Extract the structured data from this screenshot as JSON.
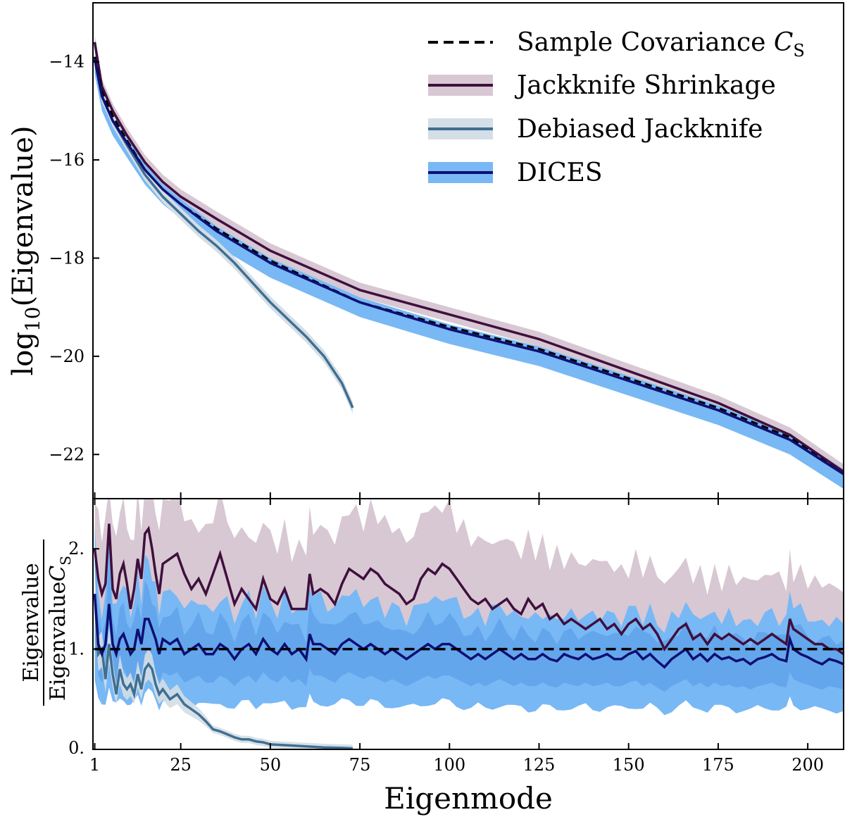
{
  "chart_data": [
    {
      "panel": "top",
      "type": "line",
      "ylabel": "log10(Eigenvalue)",
      "ylabel_main": "log",
      "ylabel_sub": "10",
      "ylabel_rest": "(Eigenvalue)",
      "xlim": [
        0.5,
        210
      ],
      "ylim": [
        -22.9,
        -12.8
      ],
      "yticks": [
        -14,
        -16,
        -18,
        -20,
        -22
      ],
      "ytick_labels": [
        "−14",
        "−16",
        "−18",
        "−20",
        "−22"
      ],
      "legend": {
        "placement": "top-right",
        "entries": [
          {
            "key": "sample",
            "label": "Sample Covariance ",
            "math": "C",
            "math_sub": "S"
          },
          {
            "key": "jk",
            "label": "Jackknife Shrinkage"
          },
          {
            "key": "djk",
            "label": "Debiased Jackknife"
          },
          {
            "key": "dices",
            "label": "DICES"
          }
        ]
      },
      "series": [
        {
          "name": "Sample Covariance C_S",
          "key": "sample",
          "x": [
            1,
            3,
            6,
            10,
            15,
            20,
            25,
            35,
            50,
            75,
            100,
            125,
            150,
            175,
            195,
            210
          ],
          "y": [
            -13.9,
            -14.6,
            -15.1,
            -15.6,
            -16.2,
            -16.6,
            -16.9,
            -17.4,
            -18.05,
            -18.9,
            -19.4,
            -19.85,
            -20.45,
            -21.05,
            -21.65,
            -22.4
          ]
        },
        {
          "name": "Jackknife Shrinkage",
          "key": "jk",
          "x": [
            1,
            3,
            6,
            10,
            15,
            20,
            25,
            35,
            50,
            75,
            100,
            125,
            150,
            175,
            195,
            210
          ],
          "y": [
            -13.6,
            -14.5,
            -15.0,
            -15.5,
            -16.05,
            -16.45,
            -16.75,
            -17.2,
            -17.85,
            -18.65,
            -19.15,
            -19.65,
            -20.3,
            -20.95,
            -21.6,
            -22.35
          ],
          "band": 0.15
        },
        {
          "name": "Debiased Jackknife",
          "key": "djk",
          "x": [
            1,
            3,
            6,
            10,
            15,
            20,
            25,
            30,
            35,
            40,
            45,
            50,
            55,
            60,
            65,
            70,
            73
          ],
          "y": [
            -13.9,
            -14.7,
            -15.2,
            -15.7,
            -16.3,
            -16.75,
            -17.1,
            -17.45,
            -17.75,
            -18.1,
            -18.5,
            -18.9,
            -19.25,
            -19.6,
            -20.0,
            -20.55,
            -21.05
          ],
          "band": 0.12
        },
        {
          "name": "DICES",
          "key": "dices",
          "x": [
            1,
            3,
            6,
            10,
            15,
            20,
            25,
            35,
            50,
            75,
            100,
            125,
            150,
            175,
            195,
            210
          ],
          "y": [
            -13.95,
            -14.7,
            -15.2,
            -15.65,
            -16.2,
            -16.6,
            -16.9,
            -17.45,
            -18.1,
            -18.9,
            -19.45,
            -19.9,
            -20.5,
            -21.1,
            -21.7,
            -22.4
          ],
          "band_upper": 0.1,
          "band_lower": 0.3
        }
      ]
    },
    {
      "panel": "bottom",
      "type": "line",
      "xlabel": "Eigenmode",
      "ylabel_num": "Eigenvalue",
      "ylabel_den": "Eigenvalue",
      "ylabel_den_math": "C",
      "ylabel_den_sub": "S",
      "xlim": [
        0.5,
        210
      ],
      "ylim": [
        0.0,
        2.5
      ],
      "xticks": [
        1,
        25,
        50,
        75,
        100,
        125,
        150,
        175,
        200
      ],
      "xtick_labels": [
        "1",
        "25",
        "50",
        "75",
        "100",
        "125",
        "150",
        "175",
        "200"
      ],
      "yticks": [
        0.0,
        1.0,
        2.0
      ],
      "ytick_labels": [
        "0.",
        "1.",
        "2."
      ],
      "series": [
        {
          "name": "Sample Covariance C_S",
          "key": "sample",
          "x": [
            1,
            210
          ],
          "y": [
            1.0,
            1.0
          ]
        },
        {
          "name": "Jackknife Shrinkage",
          "key": "jk",
          "x": [
            1,
            2,
            3,
            4,
            5,
            6,
            7,
            8,
            9,
            10,
            11,
            12,
            13,
            14,
            15,
            16,
            17,
            18,
            19,
            20,
            22,
            24,
            26,
            28,
            30,
            32,
            34,
            36,
            38,
            40,
            42,
            44,
            46,
            48,
            50,
            52,
            54,
            56,
            58,
            60,
            61,
            62,
            64,
            66,
            68,
            70,
            72,
            74,
            76,
            78,
            80,
            82,
            84,
            86,
            88,
            90,
            92,
            94,
            96,
            98,
            100,
            102,
            104,
            106,
            108,
            110,
            112,
            114,
            116,
            118,
            120,
            122,
            124,
            126,
            128,
            130,
            132,
            134,
            136,
            138,
            140,
            142,
            144,
            146,
            148,
            150,
            152,
            154,
            156,
            158,
            160,
            162,
            164,
            166,
            168,
            170,
            172,
            174,
            176,
            178,
            180,
            182,
            184,
            186,
            188,
            190,
            192,
            194,
            195,
            196,
            198,
            200,
            202,
            204,
            206,
            208,
            210
          ],
          "y": [
            2.0,
            1.7,
            1.55,
            1.65,
            2.25,
            1.6,
            1.5,
            1.75,
            1.85,
            1.65,
            1.4,
            1.6,
            1.9,
            1.7,
            2.15,
            2.2,
            2.0,
            1.75,
            1.55,
            1.85,
            1.9,
            1.95,
            1.75,
            1.6,
            1.7,
            1.55,
            1.75,
            1.95,
            1.7,
            1.45,
            1.6,
            1.5,
            1.4,
            1.7,
            1.5,
            1.45,
            1.6,
            1.4,
            1.4,
            1.4,
            1.75,
            1.55,
            1.6,
            1.55,
            1.45,
            1.65,
            1.8,
            1.75,
            1.7,
            1.8,
            1.75,
            1.65,
            1.6,
            1.55,
            1.45,
            1.5,
            1.7,
            1.8,
            1.75,
            1.85,
            1.8,
            1.7,
            1.6,
            1.5,
            1.45,
            1.5,
            1.4,
            1.45,
            1.5,
            1.4,
            1.35,
            1.5,
            1.4,
            1.45,
            1.3,
            1.35,
            1.25,
            1.3,
            1.25,
            1.2,
            1.25,
            1.3,
            1.2,
            1.25,
            1.15,
            1.25,
            1.3,
            1.2,
            1.25,
            1.15,
            1.0,
            1.1,
            1.2,
            1.25,
            1.1,
            1.15,
            1.05,
            1.15,
            1.1,
            1.15,
            1.1,
            1.05,
            1.1,
            1.05,
            1.1,
            1.15,
            1.1,
            1.05,
            1.3,
            1.2,
            1.15,
            1.1,
            1.05,
            1.05,
            1.0,
            1.0,
            0.95
          ]
        },
        {
          "name": "Debiased Jackknife",
          "key": "djk",
          "x": [
            1,
            2,
            3,
            4,
            5,
            6,
            7,
            8,
            9,
            10,
            11,
            12,
            13,
            14,
            15,
            16,
            17,
            18,
            19,
            20,
            22,
            24,
            26,
            28,
            30,
            32,
            34,
            36,
            38,
            40,
            42,
            44,
            46,
            48,
            50,
            55,
            60,
            65,
            70,
            73
          ],
          "y": [
            1.55,
            0.95,
            1.0,
            0.7,
            1.05,
            0.75,
            0.55,
            0.8,
            0.65,
            0.6,
            0.65,
            0.55,
            0.75,
            0.6,
            0.8,
            0.85,
            0.8,
            0.65,
            0.55,
            0.6,
            0.5,
            0.55,
            0.45,
            0.4,
            0.35,
            0.28,
            0.2,
            0.18,
            0.15,
            0.12,
            0.1,
            0.1,
            0.08,
            0.07,
            0.05,
            0.04,
            0.03,
            0.02,
            0.015,
            0.01
          ]
        },
        {
          "name": "DICES",
          "key": "dices",
          "x": [
            1,
            2,
            3,
            4,
            5,
            6,
            7,
            8,
            9,
            10,
            11,
            12,
            13,
            14,
            15,
            16,
            17,
            18,
            19,
            20,
            22,
            24,
            26,
            28,
            30,
            32,
            34,
            36,
            38,
            40,
            42,
            44,
            46,
            48,
            50,
            52,
            54,
            56,
            58,
            60,
            61,
            62,
            64,
            66,
            68,
            70,
            72,
            74,
            76,
            78,
            80,
            82,
            84,
            86,
            88,
            90,
            92,
            94,
            96,
            98,
            100,
            102,
            104,
            106,
            108,
            110,
            112,
            114,
            116,
            118,
            120,
            122,
            124,
            126,
            128,
            130,
            132,
            134,
            136,
            138,
            140,
            142,
            144,
            146,
            148,
            150,
            152,
            154,
            156,
            158,
            160,
            162,
            164,
            166,
            168,
            170,
            172,
            174,
            176,
            178,
            180,
            182,
            184,
            186,
            188,
            190,
            192,
            194,
            195,
            196,
            198,
            200,
            202,
            204,
            206,
            208,
            210
          ],
          "y": [
            1.55,
            1.05,
            0.95,
            1.05,
            1.45,
            1.05,
            0.95,
            1.1,
            1.15,
            1.05,
            0.95,
            1.0,
            1.2,
            1.05,
            1.3,
            1.3,
            1.2,
            1.1,
            0.95,
            1.1,
            1.05,
            1.1,
            0.95,
            1.0,
            1.05,
            0.95,
            0.95,
            1.05,
            1.0,
            0.9,
            1.0,
            1.05,
            0.95,
            1.1,
            1.0,
            0.95,
            1.05,
            0.95,
            1.0,
            0.9,
            1.15,
            1.05,
            1.05,
            1.0,
            0.95,
            1.05,
            1.1,
            1.05,
            1.0,
            1.05,
            1.0,
            0.95,
            1.0,
            0.95,
            0.9,
            0.95,
            1.0,
            1.05,
            1.0,
            1.05,
            1.05,
            1.0,
            0.95,
            0.9,
            0.95,
            0.9,
            0.95,
            1.0,
            0.95,
            0.9,
            0.95,
            0.9,
            0.9,
            0.95,
            0.9,
            0.88,
            0.95,
            0.92,
            0.9,
            0.95,
            0.9,
            0.92,
            0.95,
            0.9,
            0.9,
            0.95,
            0.98,
            0.9,
            0.95,
            0.88,
            0.82,
            0.9,
            0.95,
            1.0,
            0.9,
            0.95,
            0.88,
            0.95,
            0.9,
            0.92,
            0.88,
            0.9,
            0.85,
            0.9,
            0.92,
            0.95,
            0.9,
            0.88,
            1.1,
            1.0,
            0.95,
            0.92,
            0.88,
            0.85,
            0.9,
            0.88,
            0.85
          ]
        }
      ],
      "bands": {
        "jk": {
          "upper_base": 2.1,
          "lower_ratio": 0.6
        },
        "dices_outer": {
          "upper_scale": 1.45,
          "lower_scale": 0.45
        },
        "dices_inner": {
          "upper_scale": 1.25,
          "lower_scale": 0.7
        },
        "djk": {
          "scale": 0.18
        }
      }
    }
  ],
  "colors": {
    "sample": "#000000",
    "jk": "#3f0f3e",
    "jk_band": "#d8c8d3",
    "djk": "#3f6f92",
    "djk_band": "#d4dee6",
    "dices": "#0d0f73",
    "dices_band": "#78b8f5",
    "dices_band_inner": "#5ea0e8"
  }
}
